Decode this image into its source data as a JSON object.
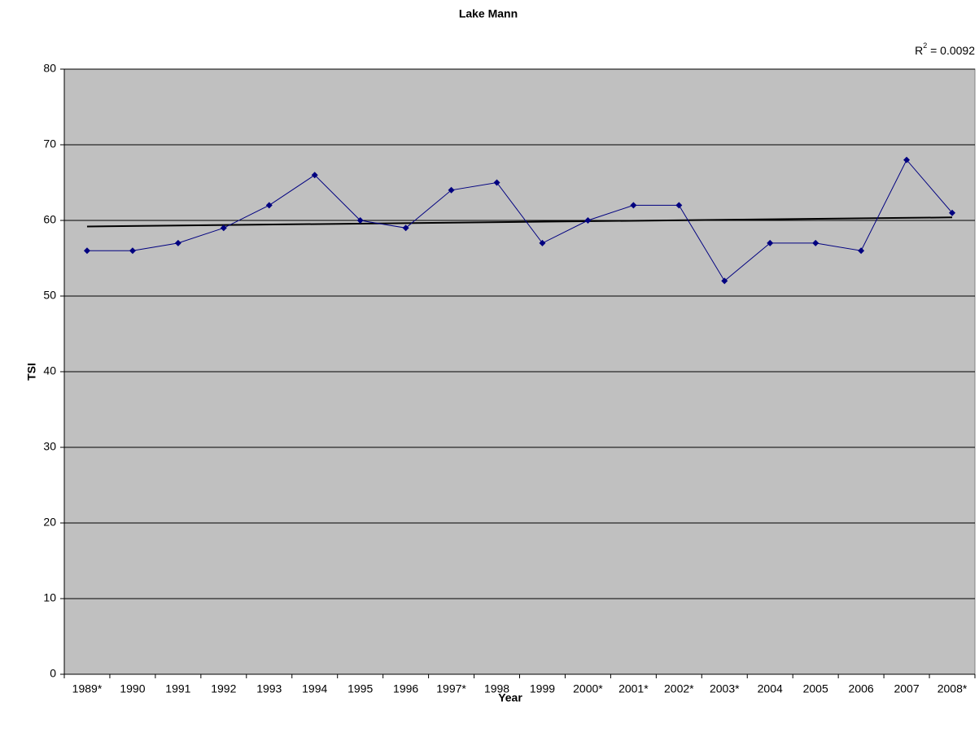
{
  "chart_data": {
    "type": "line",
    "title": "Lake Mann",
    "x_label": "Year",
    "y_label": "TSI",
    "categories": [
      "1989*",
      "1990",
      "1991",
      "1992",
      "1993",
      "1994",
      "1995",
      "1996",
      "1997*",
      "1998",
      "1999",
      "2000*",
      "2001*",
      "2002*",
      "2003*",
      "2004",
      "2005",
      "2006",
      "2007",
      "2008*"
    ],
    "series": [
      {
        "name": "TSI",
        "color": "#000080",
        "values": [
          56,
          56,
          57,
          59,
          62,
          66,
          60,
          59,
          64,
          65,
          57,
          60,
          62,
          62,
          52,
          57,
          57,
          56,
          68,
          61
        ]
      }
    ],
    "trendline": {
      "color": "#000000",
      "values": [
        59.2,
        60.4
      ],
      "label": {
        "base": "R",
        "sup": "2",
        "rest": " = 0.0092"
      }
    },
    "ylim": [
      0,
      80
    ],
    "yticks": [
      0,
      10,
      20,
      30,
      40,
      50,
      60,
      70,
      80
    ],
    "grid": true,
    "plot_background": "#c0c0c0"
  }
}
